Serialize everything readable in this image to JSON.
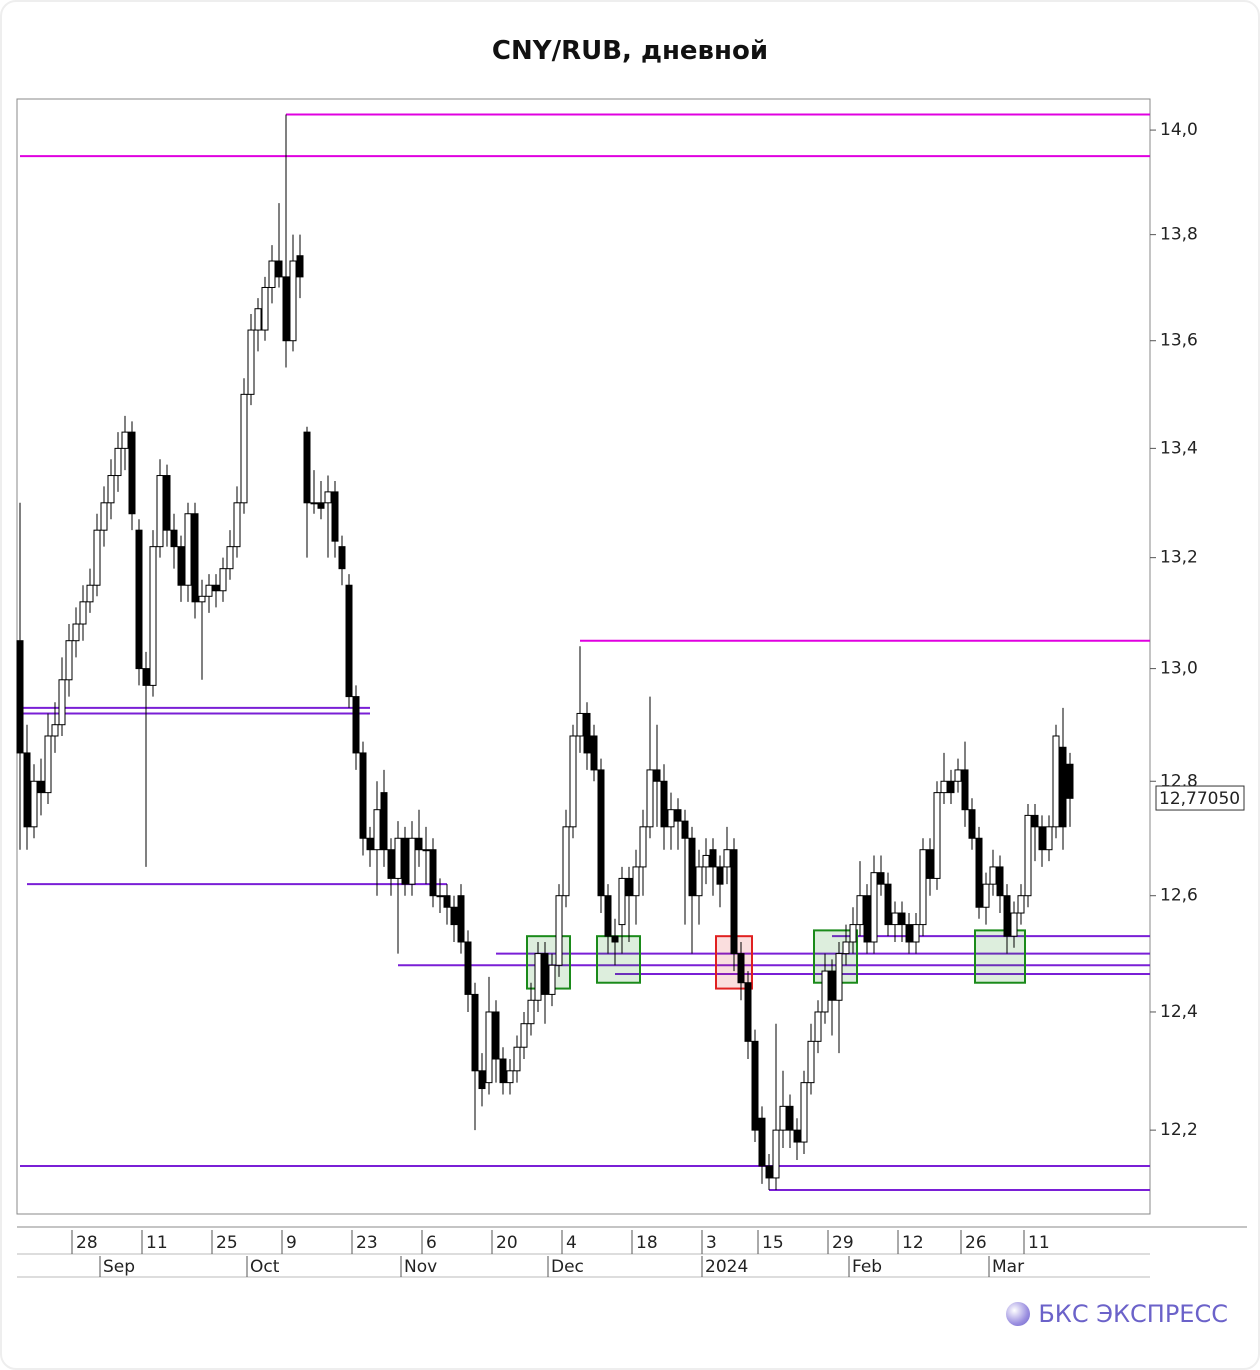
{
  "chart_data": {
    "type": "candlestick",
    "title": "CNY/RUB, дневной",
    "log_scale": true,
    "ylim": [
      12.06,
      14.06
    ],
    "yticks": [
      {
        "value": 12.2,
        "label": "12,2"
      },
      {
        "value": 12.4,
        "label": "12,4"
      },
      {
        "value": 12.6,
        "label": "12,6"
      },
      {
        "value": 12.8,
        "label": "12,8"
      },
      {
        "value": 13.0,
        "label": "13,0"
      },
      {
        "value": 13.2,
        "label": "13,2"
      },
      {
        "value": 13.4,
        "label": "13,4"
      },
      {
        "value": 13.6,
        "label": "13,6"
      },
      {
        "value": 13.8,
        "label": "13,8"
      },
      {
        "value": 14.0,
        "label": "14,0"
      }
    ],
    "xticks": [
      {
        "value": 8,
        "label": "28"
      },
      {
        "value": 18,
        "label": "11"
      },
      {
        "value": 28,
        "label": "25"
      },
      {
        "value": 38,
        "label": "9"
      },
      {
        "value": 48,
        "label": "23"
      },
      {
        "value": 58,
        "label": "6"
      },
      {
        "value": 68,
        "label": "20"
      },
      {
        "value": 78,
        "label": "4"
      },
      {
        "value": 88,
        "label": "18"
      },
      {
        "value": 98,
        "label": "3"
      },
      {
        "value": 106,
        "label": "15"
      },
      {
        "value": 116,
        "label": "29"
      },
      {
        "value": 126,
        "label": "12"
      },
      {
        "value": 135,
        "label": "26"
      },
      {
        "value": 144,
        "label": "11"
      }
    ],
    "xticks_major": [
      {
        "value": 12,
        "label": "Sep"
      },
      {
        "value": 33,
        "label": "Oct"
      },
      {
        "value": 55,
        "label": "Nov"
      },
      {
        "value": 76,
        "label": "Dec"
      },
      {
        "value": 98,
        "label": "2024"
      },
      {
        "value": 119,
        "label": "Feb"
      },
      {
        "value": 139,
        "label": "Mar"
      }
    ],
    "last_price": {
      "value": 12.7705,
      "label": "12,77050"
    },
    "up_color": "#ffffff",
    "down_color": "#000000",
    "candles": [
      [
        13.05,
        13.3,
        12.68,
        12.85
      ],
      [
        12.85,
        12.9,
        12.68,
        12.72
      ],
      [
        12.72,
        12.83,
        12.7,
        12.8
      ],
      [
        12.8,
        12.84,
        12.74,
        12.78
      ],
      [
        12.78,
        12.92,
        12.76,
        12.88
      ],
      [
        12.88,
        12.94,
        12.85,
        12.9
      ],
      [
        12.9,
        13.02,
        12.88,
        12.98
      ],
      [
        12.98,
        13.08,
        12.95,
        13.05
      ],
      [
        13.05,
        13.11,
        13.02,
        13.08
      ],
      [
        13.08,
        13.15,
        13.05,
        13.12
      ],
      [
        13.12,
        13.18,
        13.1,
        13.15
      ],
      [
        13.15,
        13.28,
        13.13,
        13.25
      ],
      [
        13.25,
        13.33,
        13.22,
        13.3
      ],
      [
        13.3,
        13.38,
        13.27,
        13.35
      ],
      [
        13.35,
        13.43,
        13.32,
        13.4
      ],
      [
        13.4,
        13.46,
        13.36,
        13.43
      ],
      [
        13.43,
        13.45,
        13.25,
        13.28
      ],
      [
        13.25,
        13.27,
        12.97,
        13.0
      ],
      [
        13.0,
        13.03,
        12.65,
        12.97
      ],
      [
        12.97,
        13.25,
        12.95,
        13.22
      ],
      [
        13.22,
        13.38,
        13.2,
        13.35
      ],
      [
        13.35,
        13.37,
        13.22,
        13.25
      ],
      [
        13.25,
        13.28,
        13.18,
        13.22
      ],
      [
        13.22,
        13.24,
        13.12,
        13.15
      ],
      [
        13.15,
        13.3,
        13.12,
        13.28
      ],
      [
        13.28,
        13.3,
        13.09,
        13.12
      ],
      [
        13.12,
        13.16,
        12.98,
        13.13
      ],
      [
        13.13,
        13.17,
        13.1,
        13.15
      ],
      [
        13.15,
        13.17,
        13.11,
        13.14
      ],
      [
        13.14,
        13.2,
        13.12,
        13.18
      ],
      [
        13.18,
        13.25,
        13.16,
        13.22
      ],
      [
        13.22,
        13.33,
        13.2,
        13.3
      ],
      [
        13.3,
        13.53,
        13.28,
        13.5
      ],
      [
        13.5,
        13.65,
        13.48,
        13.62
      ],
      [
        13.62,
        13.68,
        13.58,
        13.66
      ],
      [
        13.62,
        13.72,
        13.6,
        13.7
      ],
      [
        13.7,
        13.78,
        13.67,
        13.75
      ],
      [
        13.75,
        13.86,
        13.7,
        13.72
      ],
      [
        13.72,
        14.03,
        13.55,
        13.6
      ],
      [
        13.6,
        13.8,
        13.58,
        13.75
      ],
      [
        13.76,
        13.8,
        13.68,
        13.72
      ],
      [
        13.43,
        13.44,
        13.2,
        13.3
      ],
      [
        13.3,
        13.36,
        13.28,
        13.3
      ],
      [
        13.3,
        13.34,
        13.27,
        13.29
      ],
      [
        13.3,
        13.35,
        13.2,
        13.32
      ],
      [
        13.32,
        13.34,
        13.2,
        13.23
      ],
      [
        13.22,
        13.24,
        13.15,
        13.18
      ],
      [
        13.15,
        13.17,
        12.93,
        12.95
      ],
      [
        12.95,
        12.97,
        12.82,
        12.85
      ],
      [
        12.85,
        12.87,
        12.67,
        12.7
      ],
      [
        12.7,
        12.72,
        12.65,
        12.68
      ],
      [
        12.68,
        12.8,
        12.6,
        12.75
      ],
      [
        12.78,
        12.82,
        12.65,
        12.68
      ],
      [
        12.68,
        12.7,
        12.6,
        12.63
      ],
      [
        12.63,
        12.73,
        12.5,
        12.7
      ],
      [
        12.7,
        12.72,
        12.6,
        12.62
      ],
      [
        12.62,
        12.73,
        12.6,
        12.7
      ],
      [
        12.7,
        12.75,
        12.65,
        12.68
      ],
      [
        12.68,
        12.72,
        12.62,
        12.68
      ],
      [
        12.68,
        12.7,
        12.58,
        12.6
      ],
      [
        12.6,
        12.63,
        12.57,
        12.6
      ],
      [
        12.6,
        12.62,
        12.55,
        12.58
      ],
      [
        12.58,
        12.6,
        12.52,
        12.55
      ],
      [
        12.6,
        12.62,
        12.5,
        12.52
      ],
      [
        12.52,
        12.54,
        12.4,
        12.43
      ],
      [
        12.43,
        12.45,
        12.2,
        12.3
      ],
      [
        12.3,
        12.33,
        12.24,
        12.27
      ],
      [
        12.28,
        12.46,
        12.26,
        12.4
      ],
      [
        12.4,
        12.42,
        12.28,
        12.32
      ],
      [
        12.32,
        12.34,
        12.26,
        12.28
      ],
      [
        12.28,
        12.32,
        12.26,
        12.3
      ],
      [
        12.3,
        12.36,
        12.28,
        12.34
      ],
      [
        12.34,
        12.4,
        12.32,
        12.38
      ],
      [
        12.38,
        12.45,
        12.36,
        12.42
      ],
      [
        12.42,
        12.52,
        12.4,
        12.5
      ],
      [
        12.5,
        12.52,
        12.38,
        12.43
      ],
      [
        12.43,
        12.5,
        12.41,
        12.48
      ],
      [
        12.48,
        12.62,
        12.46,
        12.6
      ],
      [
        12.6,
        12.75,
        12.58,
        12.72
      ],
      [
        12.72,
        12.9,
        12.7,
        12.88
      ],
      [
        12.88,
        13.04,
        12.85,
        12.92
      ],
      [
        12.92,
        12.94,
        12.82,
        12.85
      ],
      [
        12.88,
        12.9,
        12.8,
        12.82
      ],
      [
        12.82,
        12.84,
        12.57,
        12.6
      ],
      [
        12.6,
        12.62,
        12.5,
        12.53
      ],
      [
        12.53,
        12.56,
        12.48,
        12.52
      ],
      [
        12.55,
        12.65,
        12.5,
        12.63
      ],
      [
        12.63,
        12.65,
        12.52,
        12.6
      ],
      [
        12.6,
        12.68,
        12.55,
        12.65
      ],
      [
        12.65,
        12.75,
        12.6,
        12.72
      ],
      [
        12.72,
        12.95,
        12.7,
        12.82
      ],
      [
        12.82,
        12.9,
        12.72,
        12.8
      ],
      [
        12.8,
        12.83,
        12.68,
        12.72
      ],
      [
        12.72,
        12.78,
        12.68,
        12.75
      ],
      [
        12.75,
        12.77,
        12.68,
        12.73
      ],
      [
        12.73,
        12.75,
        12.55,
        12.7
      ],
      [
        12.7,
        12.72,
        12.5,
        12.6
      ],
      [
        12.6,
        12.68,
        12.55,
        12.65
      ],
      [
        12.65,
        12.7,
        12.62,
        12.67
      ],
      [
        12.68,
        12.7,
        12.6,
        12.65
      ],
      [
        12.65,
        12.67,
        12.58,
        12.62
      ],
      [
        12.65,
        12.72,
        12.62,
        12.68
      ],
      [
        12.68,
        12.7,
        12.47,
        12.5
      ],
      [
        12.5,
        12.52,
        12.42,
        12.45
      ],
      [
        12.45,
        12.47,
        12.32,
        12.35
      ],
      [
        12.35,
        12.37,
        12.18,
        12.2
      ],
      [
        12.22,
        12.24,
        12.11,
        12.14
      ],
      [
        12.14,
        12.16,
        12.1,
        12.12
      ],
      [
        12.12,
        12.38,
        12.1,
        12.2
      ],
      [
        12.2,
        12.3,
        12.17,
        12.24
      ],
      [
        12.24,
        12.26,
        12.17,
        12.2
      ],
      [
        12.2,
        12.22,
        12.15,
        12.18
      ],
      [
        12.18,
        12.3,
        12.16,
        12.28
      ],
      [
        12.28,
        12.38,
        12.26,
        12.35
      ],
      [
        12.35,
        12.42,
        12.33,
        12.4
      ],
      [
        12.4,
        12.5,
        12.38,
        12.47
      ],
      [
        12.47,
        12.49,
        12.36,
        12.42
      ],
      [
        12.42,
        12.52,
        12.33,
        12.5
      ],
      [
        12.5,
        12.55,
        12.48,
        12.52
      ],
      [
        12.52,
        12.58,
        12.5,
        12.55
      ],
      [
        12.55,
        12.66,
        12.53,
        12.6
      ],
      [
        12.6,
        12.62,
        12.5,
        12.52
      ],
      [
        12.52,
        12.67,
        12.5,
        12.64
      ],
      [
        12.64,
        12.67,
        12.6,
        12.62
      ],
      [
        12.62,
        12.64,
        12.53,
        12.55
      ],
      [
        12.55,
        12.59,
        12.52,
        12.57
      ],
      [
        12.57,
        12.59,
        12.52,
        12.55
      ],
      [
        12.55,
        12.57,
        12.5,
        12.52
      ],
      [
        12.52,
        12.57,
        12.5,
        12.55
      ],
      [
        12.55,
        12.7,
        12.53,
        12.68
      ],
      [
        12.68,
        12.7,
        12.6,
        12.63
      ],
      [
        12.63,
        12.8,
        12.61,
        12.78
      ],
      [
        12.78,
        12.85,
        12.76,
        12.8
      ],
      [
        12.8,
        12.82,
        12.76,
        12.78
      ],
      [
        12.8,
        12.84,
        12.78,
        12.82
      ],
      [
        12.82,
        12.87,
        12.72,
        12.75
      ],
      [
        12.75,
        12.77,
        12.68,
        12.7
      ],
      [
        12.7,
        12.72,
        12.56,
        12.58
      ],
      [
        12.58,
        12.64,
        12.55,
        12.62
      ],
      [
        12.62,
        12.68,
        12.6,
        12.65
      ],
      [
        12.65,
        12.67,
        12.57,
        12.6
      ],
      [
        12.6,
        12.62,
        12.5,
        12.53
      ],
      [
        12.53,
        12.59,
        12.51,
        12.57
      ],
      [
        12.57,
        12.62,
        12.55,
        12.6
      ],
      [
        12.6,
        12.76,
        12.58,
        12.74
      ],
      [
        12.74,
        12.76,
        12.66,
        12.72
      ],
      [
        12.72,
        12.74,
        12.65,
        12.68
      ],
      [
        12.68,
        12.74,
        12.66,
        12.72
      ],
      [
        12.72,
        12.9,
        12.7,
        12.88
      ],
      [
        12.86,
        12.93,
        12.68,
        12.72
      ],
      [
        12.83,
        12.85,
        12.72,
        12.77
      ]
    ],
    "levels": [
      {
        "value": 14.03,
        "from": 38,
        "color": "#e000e0"
      },
      {
        "value": 13.95,
        "from": 0,
        "color": "#e000e0"
      },
      {
        "value": 12.93,
        "from": 0,
        "to": 50,
        "color": "#7a1fd6"
      },
      {
        "value": 12.92,
        "from": 0,
        "to": 50,
        "color": "#7a1fd6"
      },
      {
        "value": 12.62,
        "from": 1,
        "to": 61,
        "color": "#7a1fd6"
      },
      {
        "value": 13.05,
        "from": 80,
        "color": "#e000e0"
      },
      {
        "value": 12.53,
        "from": 116,
        "color": "#7a1fd6"
      },
      {
        "value": 12.5,
        "from": 68,
        "color": "#7a1fd6"
      },
      {
        "value": 12.48,
        "from": 54,
        "color": "#7a1fd6"
      },
      {
        "value": 12.465,
        "from": 85,
        "color": "#7a1fd6"
      },
      {
        "value": 12.14,
        "from": 0,
        "color": "#7a1fd6"
      },
      {
        "value": 12.1,
        "from": 107,
        "color": "#7a1fd6"
      }
    ],
    "zones": [
      {
        "from": 73,
        "to": 78,
        "low": 12.44,
        "high": 12.53,
        "color": "#1a8a1a"
      },
      {
        "from": 83,
        "to": 88,
        "low": 12.45,
        "high": 12.53,
        "color": "#1a8a1a"
      },
      {
        "from": 100,
        "to": 104,
        "low": 12.44,
        "high": 12.53,
        "color": "#e02020"
      },
      {
        "from": 114,
        "to": 119,
        "low": 12.45,
        "high": 12.54,
        "color": "#1a8a1a"
      },
      {
        "from": 137,
        "to": 143,
        "low": 12.45,
        "high": 12.54,
        "color": "#1a8a1a"
      }
    ]
  },
  "brand": {
    "text": "БКС ЭКСПРЕСС"
  }
}
